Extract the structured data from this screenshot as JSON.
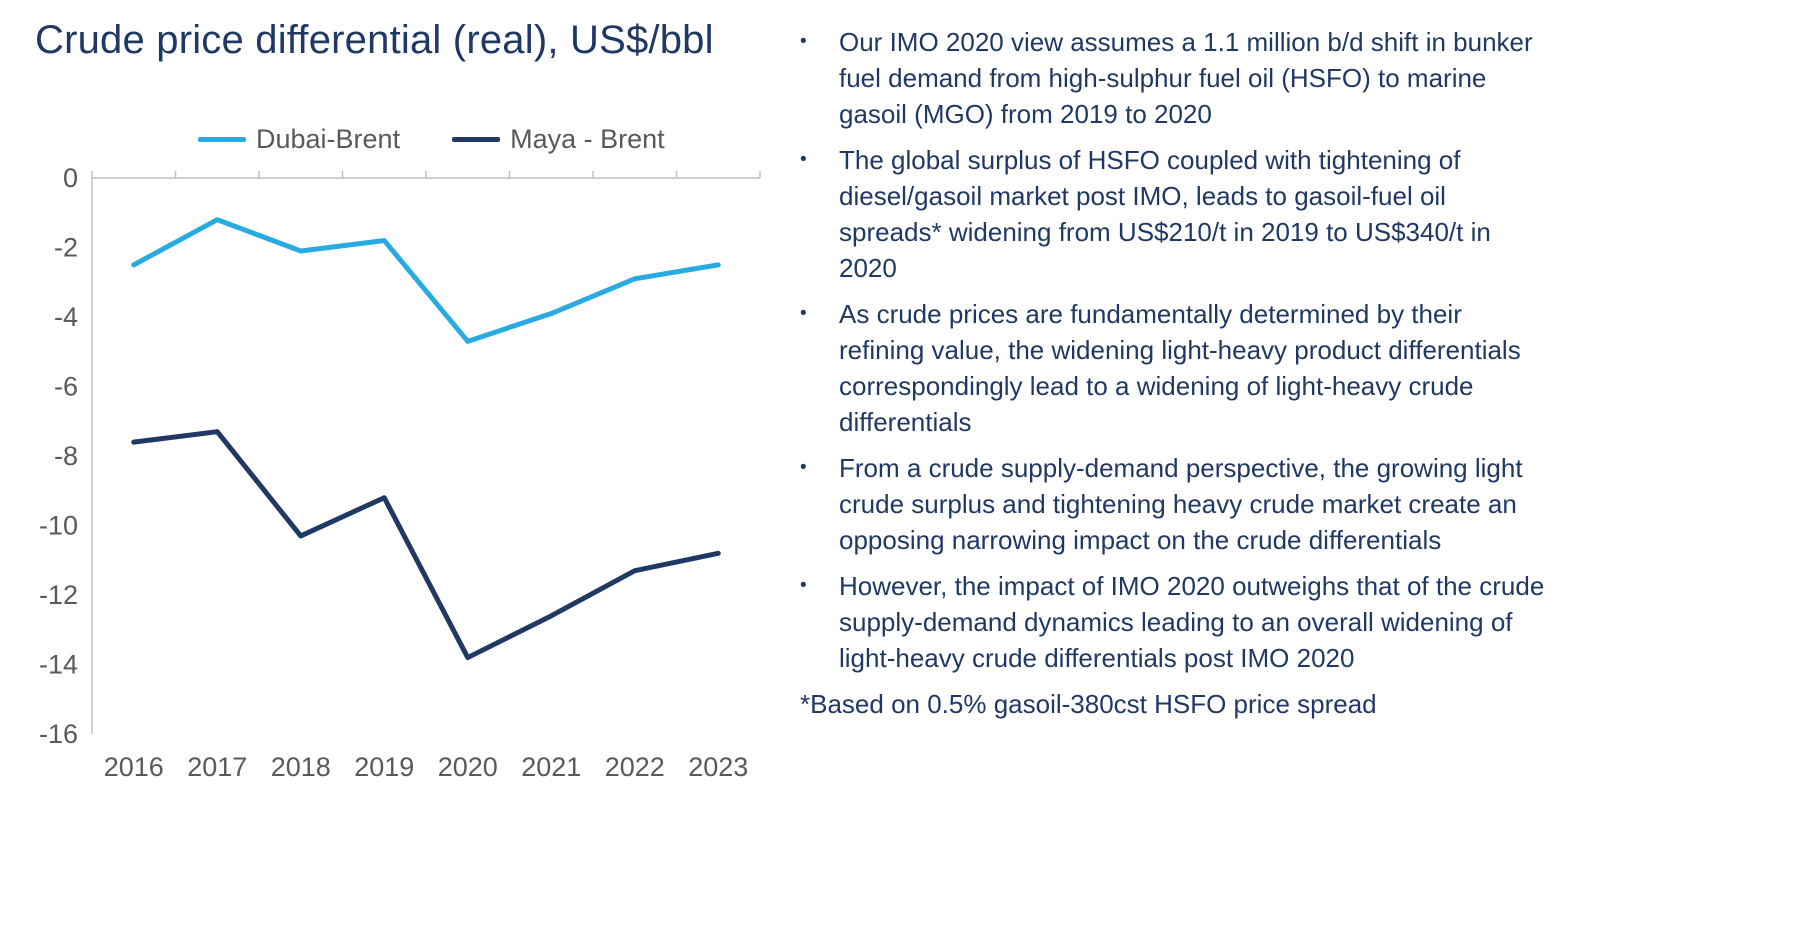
{
  "page": {
    "title": "Crude price differential (real), US$/bbl",
    "footnote": "*Based on 0.5% gasoil-380cst HSFO price spread"
  },
  "colors": {
    "dubai_brent": "#29abe2",
    "maya_brent": "#203864",
    "axis_line": "#bfbfbf",
    "tick_label": "#595959",
    "legend_label": "#595959",
    "heading_text": "#203864",
    "body_text": "#203864"
  },
  "chart_data": {
    "type": "line",
    "title": "Crude price differential (real), US$/bbl",
    "x": [
      "2016",
      "2017",
      "2018",
      "2019",
      "2020",
      "2021",
      "2022",
      "2023"
    ],
    "ylim": [
      -16,
      0
    ],
    "ytick_step": 2,
    "grid": false,
    "legend_position": "top",
    "series": [
      {
        "name": "Dubai-Brent",
        "color_key": "dubai_brent",
        "values": [
          -2.5,
          -1.2,
          -2.1,
          -1.8,
          -4.7,
          -3.9,
          -2.9,
          -2.5
        ]
      },
      {
        "name": "Maya - Brent",
        "color_key": "maya_brent",
        "values": [
          -7.6,
          -7.3,
          -10.3,
          -9.2,
          -13.8,
          -12.6,
          -11.3,
          -10.8
        ]
      }
    ]
  },
  "bullets": [
    {
      "marker": "•",
      "text": "Our IMO 2020 view assumes a 1.1 million b/d shift in bunker fuel demand from high-sulphur fuel oil (HSFO) to marine gasoil (MGO) from 2019 to 2020"
    },
    {
      "marker": "•",
      "text": "The global surplus of HSFO coupled with tightening of diesel/gasoil market post IMO, leads to gasoil-fuel oil spreads* widening from US$210/t in 2019 to US$340/t in 2020"
    },
    {
      "marker": "•",
      "text": "As crude prices are fundamentally determined by their refining value, the widening light-heavy product differentials correspondingly lead to a widening of light-heavy crude differentials"
    },
    {
      "marker": "•",
      "text": "From a crude supply-demand perspective, the growing light crude surplus and tightening heavy crude market create an opposing narrowing impact on the crude differentials"
    },
    {
      "marker": "•",
      "text": "However, the impact of IMO 2020 outweighs that of the crude supply-demand dynamics leading to an overall widening of light-heavy crude differentials post IMO 2020"
    }
  ]
}
